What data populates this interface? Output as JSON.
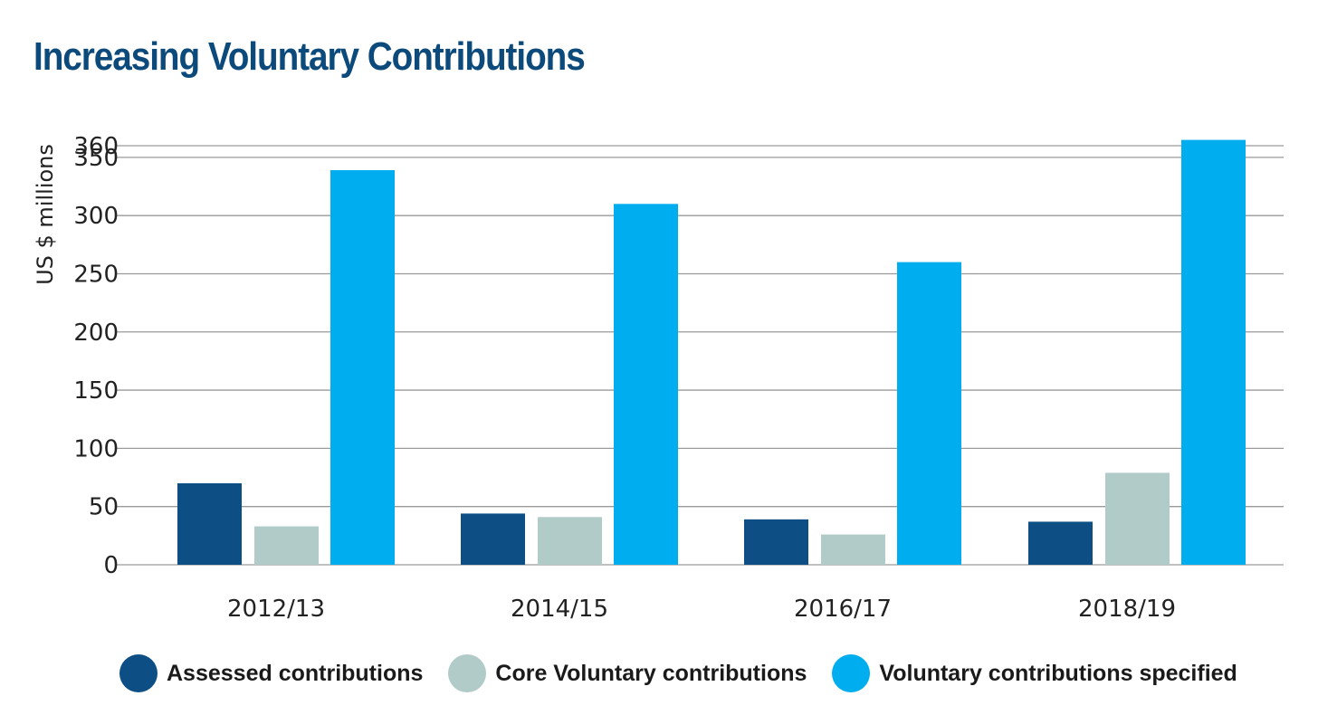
{
  "chart_data": {
    "type": "bar",
    "title": "Increasing Voluntary Contributions",
    "ylabel": "US $ millions",
    "xlabel": "",
    "ylim": [
      0,
      360
    ],
    "yticks": [
      0,
      50,
      100,
      150,
      200,
      250,
      300,
      350,
      360
    ],
    "categories": [
      "2012/13",
      "2014/15",
      "2016/17",
      "2018/19"
    ],
    "series": [
      {
        "name": "Assessed contributions",
        "color": "#0d4f84",
        "values": [
          70,
          44,
          39,
          37
        ]
      },
      {
        "name": "Core Voluntary contributions",
        "color": "#b0cbc8",
        "values": [
          33,
          41,
          26,
          79
        ]
      },
      {
        "name": "Voluntary contributions specified",
        "color": "#00aeef",
        "values": [
          339,
          310,
          260,
          365
        ]
      }
    ],
    "grid": true,
    "legend_position": "bottom"
  }
}
